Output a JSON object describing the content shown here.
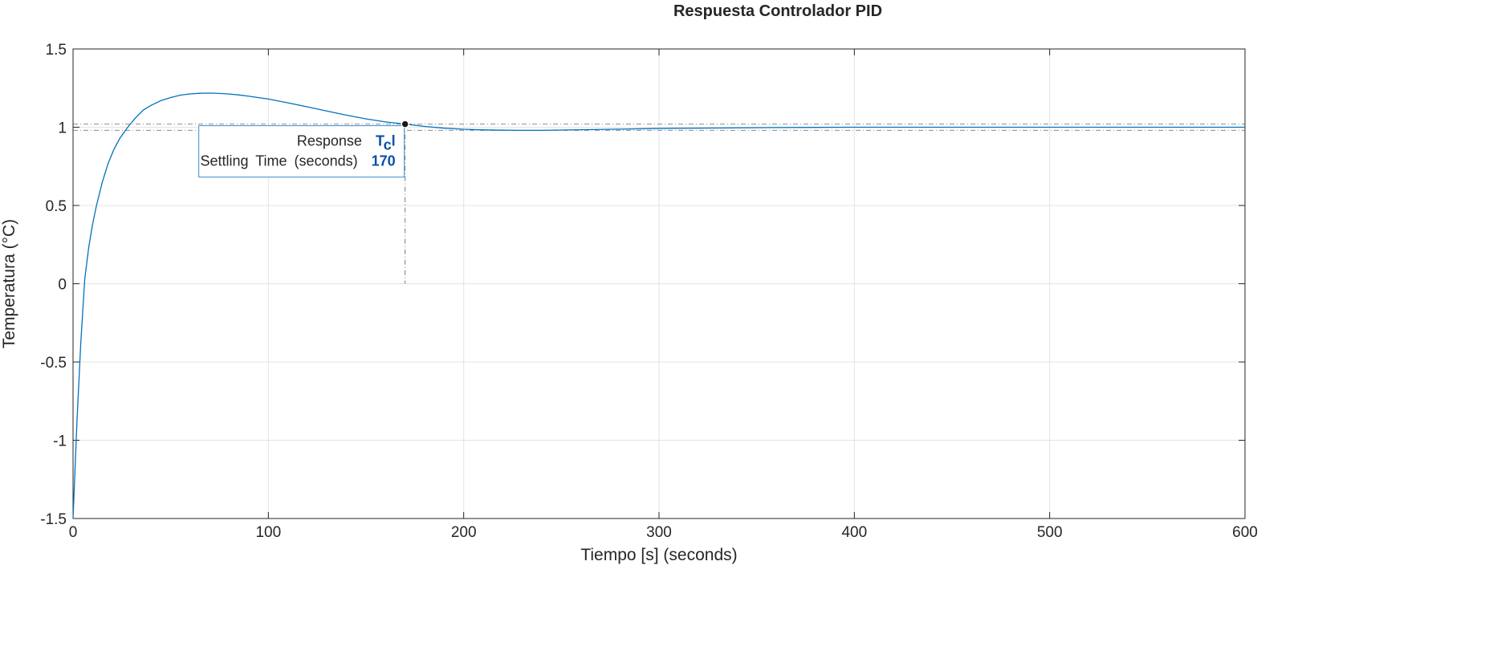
{
  "chart_data": {
    "type": "line",
    "title": "Respuesta Controlador PID",
    "xlabel": "Tiempo [s] (seconds)",
    "ylabel": "Temperatura (°C)",
    "xlim": [
      0,
      600
    ],
    "ylim": [
      -1.5,
      1.5
    ],
    "xticks": [
      "0",
      "100",
      "200",
      "300",
      "400",
      "500",
      "600"
    ],
    "yticks": [
      "-1.5",
      "-1",
      "-0.5",
      "0",
      "0.5",
      "1",
      "1.5"
    ],
    "grid": true,
    "colors": {
      "line": "#0072bd",
      "grid": "#e3e3e3",
      "settling_band": "#8c8c8c",
      "tooltip_border": "#3b8fd1",
      "tooltip_value": "#0b4fa8"
    },
    "series": [
      {
        "x": [
          0,
          2,
          4,
          6,
          8,
          10,
          12,
          15,
          18,
          21,
          24,
          28,
          32,
          36,
          40,
          45,
          50,
          55,
          60,
          65,
          70,
          75,
          80,
          85,
          90,
          100,
          110,
          120,
          130,
          140,
          150,
          160,
          170,
          180,
          190,
          200,
          210,
          220,
          230,
          240,
          250,
          260,
          280,
          300,
          330,
          360,
          400,
          450,
          500,
          550,
          600
        ],
        "y": [
          -1.5,
          -0.88,
          -0.37,
          0.03,
          0.23,
          0.38,
          0.5,
          0.65,
          0.77,
          0.86,
          0.93,
          1.0,
          1.06,
          1.11,
          1.14,
          1.17,
          1.19,
          1.205,
          1.213,
          1.217,
          1.218,
          1.216,
          1.212,
          1.206,
          1.198,
          1.18,
          1.156,
          1.13,
          1.103,
          1.077,
          1.053,
          1.034,
          1.02,
          1.005,
          0.994,
          0.987,
          0.983,
          0.981,
          0.98,
          0.98,
          0.982,
          0.984,
          0.988,
          0.992,
          0.995,
          0.998,
          1.0,
          1.0,
          1.0,
          1.0,
          1.0
        ]
      }
    ],
    "settling_band": {
      "upper": 1.02,
      "lower": 0.98
    },
    "settling_point": {
      "x": 170,
      "y": 1.02
    },
    "tooltip": {
      "label_response": "Response",
      "value_response_main": "T",
      "value_response_sub": "c",
      "value_response_tail": "l",
      "label_settling": "Settling  Time  (seconds)",
      "value_settling": "170"
    }
  }
}
